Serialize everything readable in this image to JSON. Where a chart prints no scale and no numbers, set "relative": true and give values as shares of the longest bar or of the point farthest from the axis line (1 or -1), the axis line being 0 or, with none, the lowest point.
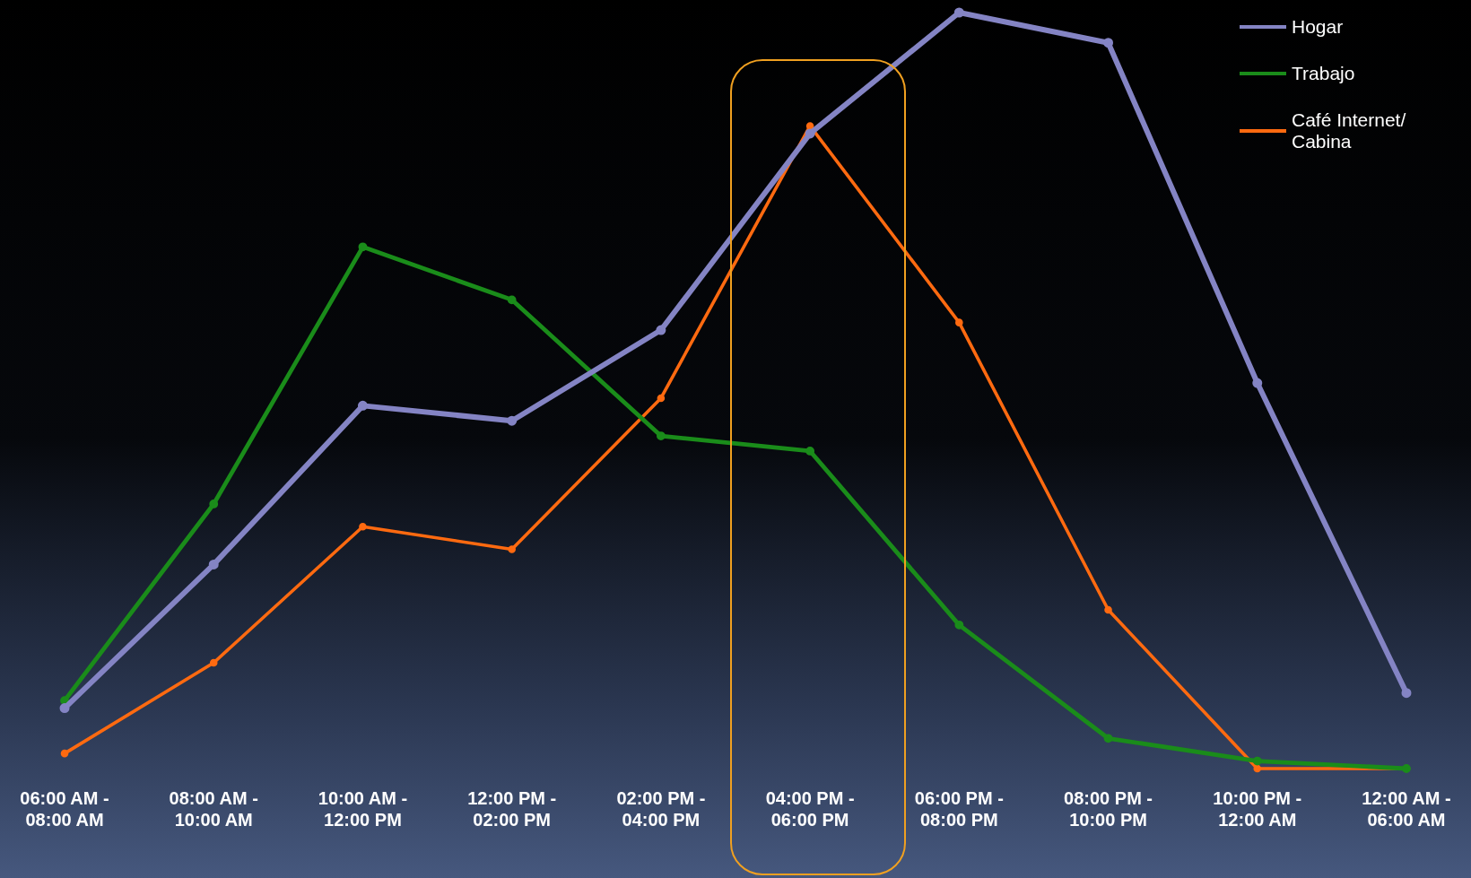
{
  "chart_data": {
    "type": "line",
    "relative": true,
    "legend": "top right",
    "marker": "circle",
    "line_style": "solid",
    "grid": false,
    "categories": [
      "06:00 AM -\n08:00 AM",
      "08:00 AM -\n10:00 AM",
      "10:00 AM -\n12:00 PM",
      "12:00 PM -\n02:00 PM",
      "02:00 PM -\n04:00 PM",
      "04:00 PM -\n06:00 PM",
      "06:00 PM -\n08:00 PM",
      "08:00 PM -\n10:00 PM",
      "10:00 PM -\n12:00 AM",
      "12:00 AM -\n06:00 AM"
    ],
    "series": [
      {
        "name": "Hogar",
        "color": "#8484c4",
        "values": [
          0.08,
          0.27,
          0.48,
          0.46,
          0.58,
          0.84,
          1.0,
          0.96,
          0.51,
          0.1
        ]
      },
      {
        "name": "Trabajo",
        "color": "#1a8c1a",
        "values": [
          0.09,
          0.35,
          0.69,
          0.62,
          0.44,
          0.42,
          0.19,
          0.04,
          0.01,
          0.0
        ]
      },
      {
        "name": "Café Internet/ Cabina",
        "color": "#ff6a10",
        "values": [
          0.02,
          0.14,
          0.32,
          0.29,
          0.49,
          0.85,
          0.59,
          0.21,
          0.0,
          0.0
        ]
      }
    ]
  }
}
